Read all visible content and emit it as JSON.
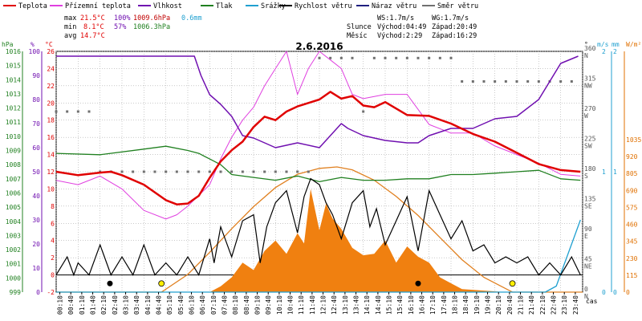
{
  "chart_data": {
    "type": "line",
    "title": "2.6.2016",
    "legend": [
      {
        "name": "Teplota",
        "color": "#e00000"
      },
      {
        "name": "Přízemní teplota",
        "color": "#e040e0"
      },
      {
        "name": "Vlhkost",
        "color": "#7010b0"
      },
      {
        "name": "Tlak",
        "color": "#208020"
      },
      {
        "name": "Srážky",
        "color": "#20a0d0"
      },
      {
        "name": "Rychlost větru",
        "color": "#000000"
      },
      {
        "name": "Náraz větru",
        "color": "#202080"
      },
      {
        "name": "Směr větru",
        "color": "#707070"
      }
    ],
    "stats": {
      "max_label": "max",
      "max_temp": "21.5°C",
      "max_hum": "100%",
      "max_press": "1009.6hPa",
      "max_rain": "0.6mm",
      "min_label": "min",
      "min_temp": "8.1°C",
      "min_hum": "57%",
      "min_press": "1006.3hPa",
      "avg_label": "avg",
      "avg_temp": "14.7°C"
    },
    "wind_info": {
      "ws": "WS:1.7m/s",
      "wg": "WG:1.7m/s"
    },
    "sun": {
      "label": "Slunce",
      "rise": "Východ:04:49",
      "set": "Západ:20:49"
    },
    "moon": {
      "label": "Měsíc",
      "rise": "Východ:2:29",
      "set": "Západ:16:29"
    },
    "x_axis_label": "čas",
    "x_ticks": [
      "00:10",
      "00:40",
      "01:10",
      "01:40",
      "02:10",
      "02:40",
      "03:10",
      "03:40",
      "04:10",
      "04:40",
      "05:10",
      "05:40",
      "06:10",
      "06:40",
      "07:10",
      "07:40",
      "08:10",
      "08:40",
      "09:10",
      "09:40",
      "10:10",
      "10:40",
      "11:10",
      "11:40",
      "12:10",
      "12:40",
      "13:10",
      "13:40",
      "14:10",
      "14:40",
      "15:10",
      "15:40",
      "16:10",
      "16:40",
      "17:10",
      "17:40",
      "18:10",
      "18:40",
      "19:10",
      "19:40",
      "20:10",
      "20:40",
      "21:10",
      "21:40",
      "22:10",
      "22:40",
      "23:10",
      "23:40"
    ],
    "axis_units": {
      "hpa": "hPa",
      "pct": "%",
      "temp": "°C",
      "deg": "°",
      "ms": "m/s",
      "mm": "mm",
      "wm": "W/m²"
    },
    "hpa_ticks": [
      "999",
      "1000",
      "1001",
      "1002",
      "1003",
      "1004",
      "1005",
      "1006",
      "1007",
      "1008",
      "1009",
      "1010",
      "1011",
      "1012",
      "1013",
      "1014",
      "1015",
      "1016"
    ],
    "pct_ticks": [
      "0",
      "10",
      "20",
      "30",
      "40",
      "50",
      "60",
      "70",
      "80",
      "90",
      "100"
    ],
    "temp_ticks": [
      "-2",
      "0",
      "2",
      "4",
      "6",
      "8",
      "10",
      "12",
      "14",
      "16",
      "18",
      "20",
      "22",
      "24",
      "26"
    ],
    "dir_ticks": [
      {
        "deg": "0",
        "name": "N"
      },
      {
        "deg": "45",
        "name": "NE"
      },
      {
        "deg": "90",
        "name": "E"
      },
      {
        "deg": "135",
        "name": "SE"
      },
      {
        "deg": "180",
        "name": "S"
      },
      {
        "deg": "225",
        "name": "SW"
      },
      {
        "deg": "270",
        "name": "W"
      },
      {
        "deg": "315",
        "name": "NW"
      },
      {
        "deg": "360",
        "name": "N"
      }
    ],
    "ms_ticks": [
      "0",
      "1",
      "2"
    ],
    "mm_ticks": [
      "0",
      "1",
      "2"
    ],
    "wm_ticks": [
      "0",
      "115",
      "230",
      "345",
      "460",
      "575",
      "690",
      "805",
      "920",
      "1035"
    ],
    "temp_range": [
      -2,
      26
    ],
    "series": [
      {
        "name": "Teplota",
        "x_hours": [
          0,
          1,
          2,
          2.5,
          3,
          4,
          5,
          5.5,
          6,
          6.5,
          7,
          7.5,
          8,
          8.5,
          9,
          9.5,
          10,
          10.5,
          11,
          11.5,
          12,
          12.5,
          13,
          13.5,
          14,
          14.5,
          15,
          16,
          17,
          18,
          19,
          20,
          21,
          22,
          23,
          23.9
        ],
        "values": [
          12,
          11.6,
          11.9,
          12,
          11.6,
          10.5,
          8.7,
          8.2,
          8.3,
          9.2,
          11.3,
          13.2,
          14.5,
          15.5,
          17.2,
          18.4,
          18,
          19,
          19.6,
          20,
          20.4,
          21.3,
          20.5,
          20.8,
          19.7,
          19.5,
          20.1,
          18.6,
          18.5,
          17.6,
          16.4,
          15.5,
          14.2,
          12.9,
          12.2,
          12
        ]
      },
      {
        "name": "Přízemní teplota",
        "x_hours": [
          0,
          1,
          2,
          3,
          4,
          5,
          5.5,
          6,
          7,
          7.5,
          8,
          8.5,
          9,
          9.5,
          10,
          10.5,
          11,
          11.5,
          12,
          12.5,
          13,
          13.5,
          14,
          15,
          16,
          17,
          18,
          19,
          20,
          21,
          22,
          23,
          23.9
        ],
        "values": [
          11,
          10.5,
          11.5,
          10,
          7.5,
          6.5,
          7,
          8,
          10.5,
          13.5,
          16,
          18,
          19.5,
          22,
          24,
          26,
          21,
          24,
          26,
          25,
          24,
          21,
          20.5,
          21,
          21,
          17.5,
          16.5,
          16.5,
          15,
          14,
          13,
          11.7,
          11.5
        ]
      },
      {
        "name": "Vlhkost",
        "x_hours": [
          0,
          2,
          4,
          5.5,
          6.3,
          6.6,
          7,
          7.5,
          8,
          8.5,
          9,
          9.5,
          10,
          11,
          12,
          13,
          13.3,
          14,
          15,
          16,
          16.5,
          17,
          18,
          19,
          20,
          21,
          22,
          23,
          23.8
        ],
        "values": [
          98,
          98,
          98,
          98,
          98,
          90,
          82,
          78,
          73,
          65,
          64,
          62,
          60,
          62,
          60,
          70,
          68,
          65,
          63,
          62,
          62,
          65,
          68,
          68,
          72,
          73,
          80,
          95,
          98
        ]
      },
      {
        "name": "Tlak",
        "x_hours": [
          0,
          2,
          4,
          5,
          6,
          6.5,
          7,
          7.5,
          8,
          9,
          10,
          11,
          12,
          13,
          14,
          15,
          16,
          17,
          18,
          19,
          20,
          21,
          22,
          23,
          23.9
        ],
        "values": [
          1008.8,
          1008.7,
          1009.1,
          1009.3,
          1009,
          1008.8,
          1008.4,
          1008,
          1007.3,
          1007.1,
          1006.9,
          1007.2,
          1006.8,
          1007.1,
          1006.9,
          1006.9,
          1007,
          1007,
          1007.3,
          1007.3,
          1007.4,
          1007.5,
          1007.6,
          1007,
          1006.9
        ]
      },
      {
        "name": "Srážky",
        "x_hours": [
          0,
          22.3,
          22.8,
          23.2,
          23.6,
          23.9
        ],
        "values": [
          0,
          0,
          0.05,
          0.25,
          0.45,
          0.6
        ]
      }
    ],
    "wind_speed": {
      "x_hours": [
        0,
        0.5,
        0.8,
        1,
        1.5,
        2,
        2.5,
        3,
        3.5,
        4,
        4.5,
        5,
        5.5,
        6,
        6.5,
        7,
        7.2,
        7.5,
        8,
        8.5,
        9,
        9.3,
        9.6,
        10,
        10.5,
        11,
        11.3,
        11.6,
        12,
        12.3,
        12.6,
        13,
        13.5,
        14,
        14.3,
        14.6,
        15,
        15.5,
        16,
        16.5,
        17,
        17.5,
        18,
        18.5,
        19,
        19.5,
        20,
        20.5,
        21,
        21.5,
        22,
        22.5,
        23,
        23.5,
        23.9
      ],
      "values": [
        0,
        0.3,
        0,
        0.2,
        0,
        0.5,
        0,
        0.3,
        0,
        0.5,
        0,
        0.2,
        0,
        0.3,
        0,
        0.6,
        0.2,
        0.8,
        0.3,
        0.9,
        1,
        0.2,
        0.8,
        1.2,
        1.4,
        0.7,
        1.3,
        1.6,
        1.5,
        1.2,
        1,
        0.6,
        1.2,
        1.4,
        0.8,
        1.1,
        0.5,
        0.9,
        1.3,
        0.4,
        1.4,
        1,
        0.6,
        0.9,
        0.4,
        0.5,
        0.2,
        0.3,
        0.2,
        0.3,
        0,
        0.2,
        0,
        0.3,
        0
      ]
    },
    "wind_direction": {
      "x_hours": [
        0,
        0.5,
        1,
        1.5,
        2,
        2.5,
        3,
        3.5,
        4,
        4.5,
        5,
        5.5,
        6,
        6.5,
        7,
        7.5,
        8,
        8.5,
        9,
        9.5,
        10,
        10.5,
        11,
        11.5,
        12,
        12.5,
        13,
        13.5,
        14,
        14.5,
        15,
        15.5,
        16,
        16.5,
        17,
        17.5,
        18,
        18.5,
        19,
        19.5,
        20,
        20.5,
        21,
        21.5,
        22,
        22.5,
        23,
        23.5
      ],
      "values": [
        270,
        270,
        270,
        270,
        180,
        180,
        180,
        180,
        180,
        180,
        180,
        180,
        180,
        180,
        180,
        180,
        180,
        180,
        180,
        180,
        180,
        180,
        180,
        180,
        350,
        350,
        350,
        350,
        270,
        350,
        350,
        350,
        350,
        350,
        350,
        350,
        350,
        315,
        315,
        315,
        315,
        315,
        315,
        315,
        315,
        315,
        315,
        315
      ]
    },
    "solar_radiation": {
      "x_hours": [
        0,
        7,
        7.5,
        8,
        8.5,
        9,
        9.5,
        10,
        10.5,
        11,
        11.3,
        11.6,
        12,
        12.3,
        12.6,
        13,
        13.5,
        14,
        14.5,
        15,
        15.5,
        16,
        16.5,
        17,
        17.5,
        18,
        18.5,
        20.5,
        24
      ],
      "values": [
        0,
        0,
        40,
        100,
        200,
        150,
        280,
        350,
        260,
        400,
        330,
        700,
        420,
        600,
        500,
        430,
        300,
        250,
        260,
        350,
        200,
        310,
        240,
        200,
        100,
        60,
        20,
        0,
        0
      ]
    },
    "solar_theoretical": {
      "x_hours": [
        0,
        4.8,
        6,
        7,
        8,
        9,
        10,
        11,
        12,
        12.8,
        13.5,
        14.5,
        15.5,
        16.5,
        17.5,
        18.5,
        19.5,
        20.8,
        24
      ],
      "values": [
        0,
        0,
        120,
        270,
        430,
        580,
        710,
        800,
        840,
        850,
        830,
        760,
        650,
        520,
        370,
        220,
        100,
        0,
        0
      ]
    }
  }
}
